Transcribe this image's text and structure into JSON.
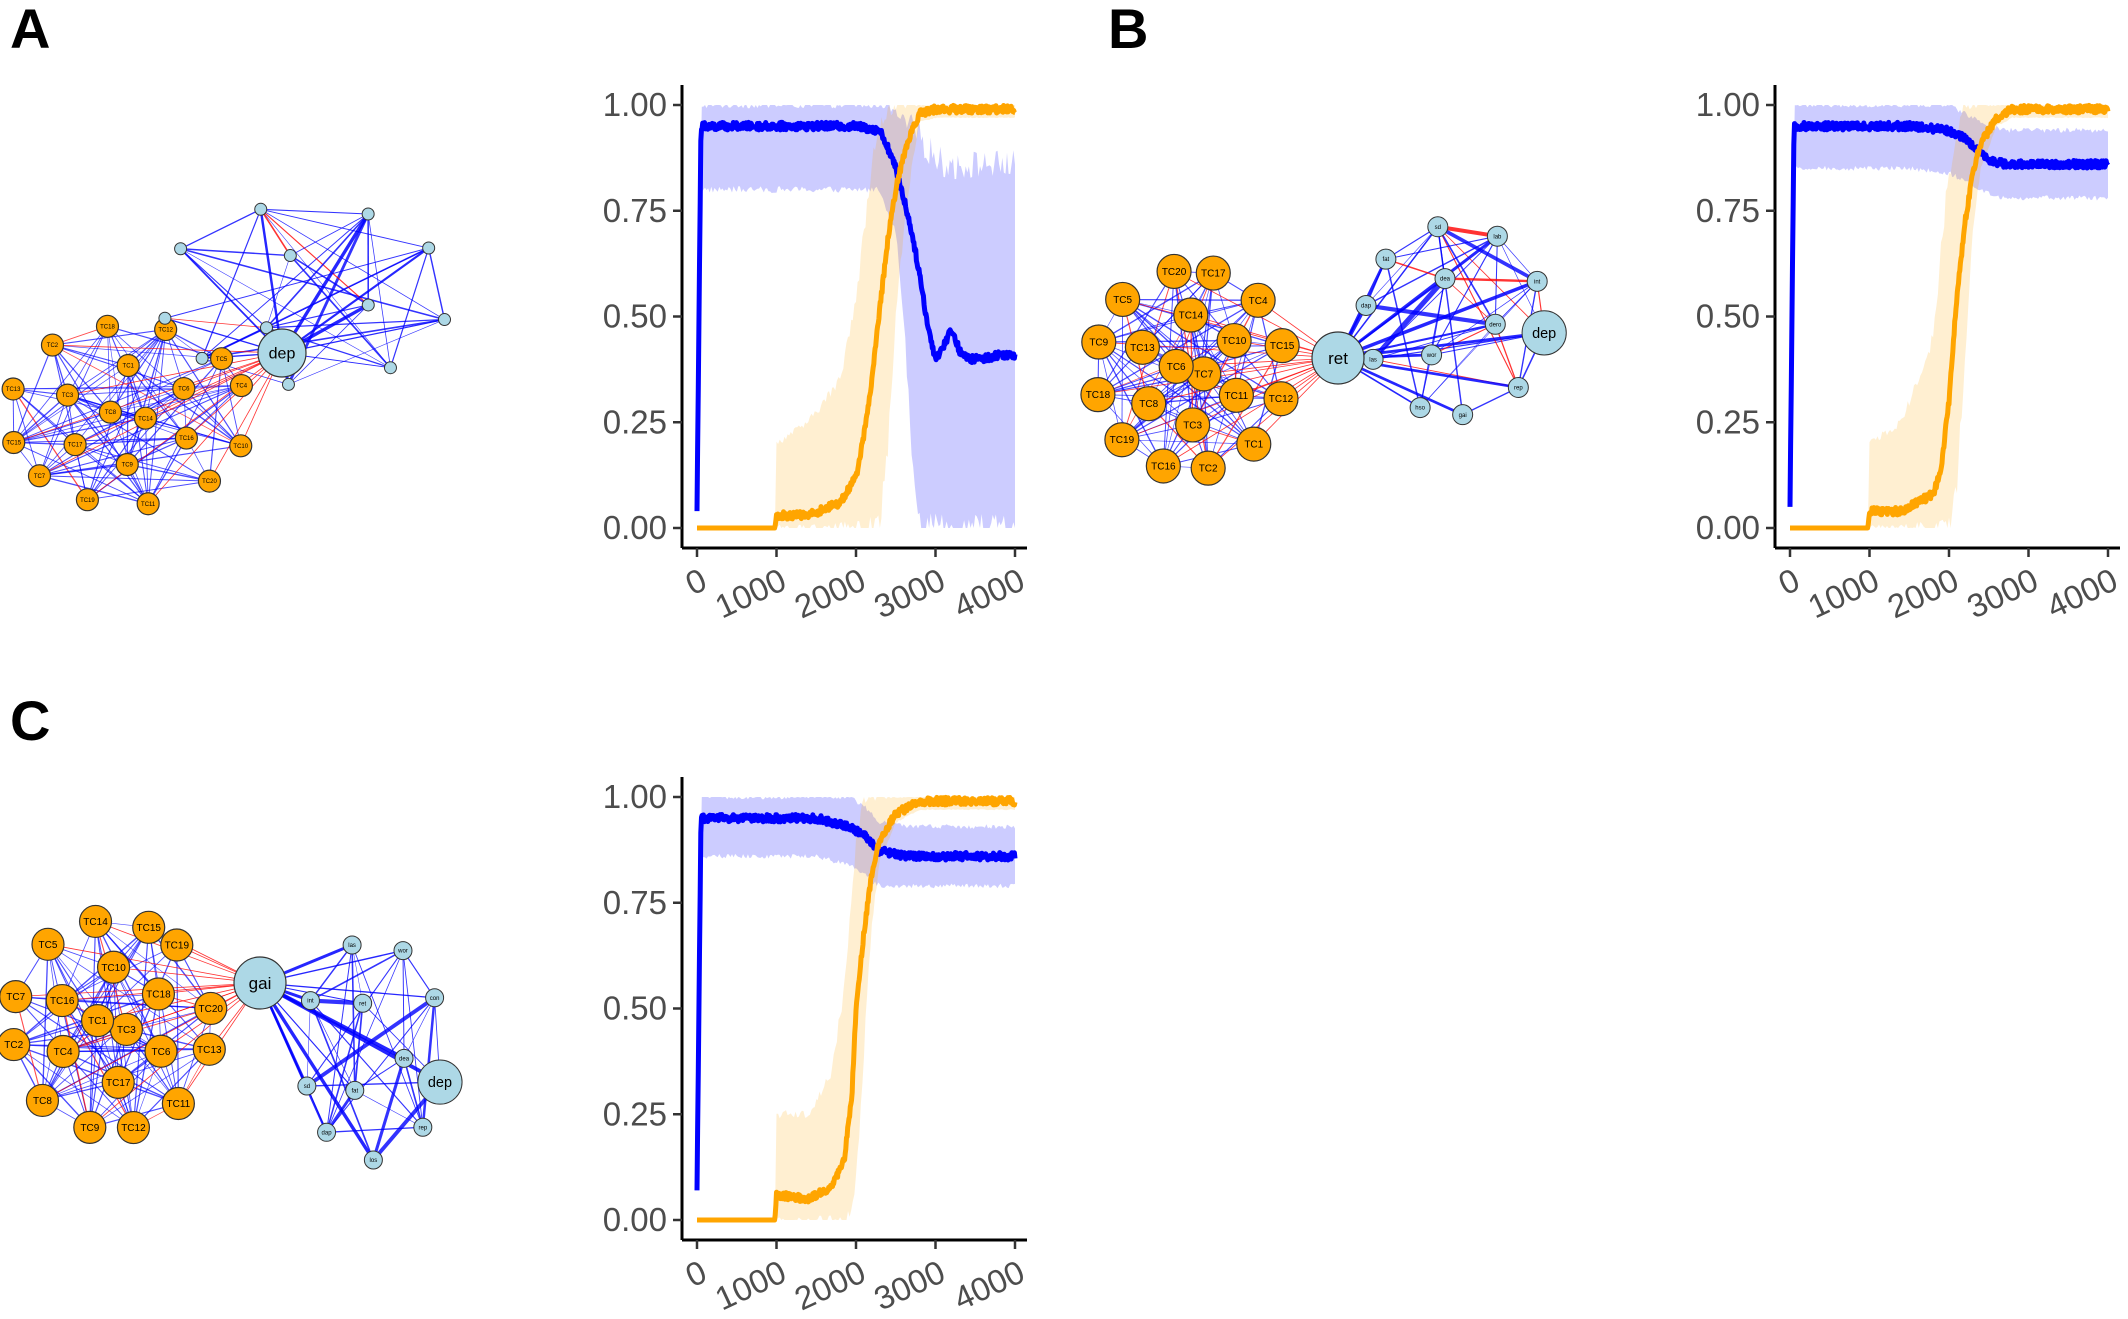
{
  "panels": [
    {
      "letter": "A",
      "network": {
        "hub": "dep",
        "clusters": [
          {
            "color": "#FFA500",
            "nodes": [
              "TC20",
              "TC11",
              "TC19",
              "TC7",
              "TC15",
              "TC13",
              "TC2",
              "TC18",
              "TC12",
              "TC5",
              "TC4",
              "TC10",
              "TC16",
              "TC9",
              "TC17",
              "TC3",
              "TC1",
              "TC6",
              "TC14",
              "TC8"
            ]
          },
          {
            "color": "#ADD8E6",
            "nodes": [
              "",
              "",
              "",
              "",
              "",
              "",
              "",
              "",
              "",
              "",
              "",
              ""
            ]
          }
        ]
      },
      "chart_data": {
        "type": "line",
        "xlim": [
          0,
          4000
        ],
        "ylim": [
          0,
          1
        ],
        "xticks": [
          "0",
          "1000",
          "2000",
          "3000",
          "4000"
        ],
        "yticks": [
          "0.00",
          "0.25",
          "0.50",
          "0.75",
          "1.00"
        ],
        "series": [
          {
            "color": "#0000FF",
            "x": [
              0,
              50,
              1000,
              2000,
              2300,
              2400,
              2500,
              2600,
              2700,
              2800,
              2900,
              3000,
              3100,
              3200,
              3300,
              3400,
              3600,
              3800,
              4000
            ],
            "y": [
              0.04,
              0.95,
              0.95,
              0.95,
              0.94,
              0.9,
              0.85,
              0.78,
              0.7,
              0.6,
              0.48,
              0.4,
              0.43,
              0.47,
              0.42,
              0.4,
              0.4,
              0.41,
              0.41
            ],
            "lower": [
              0.04,
              0.8,
              0.8,
              0.8,
              0.8,
              0.75,
              0.7,
              0.5,
              0.2,
              0.0,
              0.0,
              0.0,
              0.0,
              0.0,
              0.0,
              0.0,
              0.0,
              0.0,
              0.0
            ],
            "upper": [
              0.04,
              1.0,
              1.0,
              1.0,
              1.0,
              1.0,
              0.98,
              0.96,
              0.95,
              0.92,
              0.9,
              0.88,
              0.86,
              0.86,
              0.85,
              0.86,
              0.86,
              0.86,
              0.86
            ]
          },
          {
            "color": "#FFA500",
            "x": [
              0,
              980,
              1000,
              1400,
              1800,
              2000,
              2100,
              2200,
              2300,
              2400,
              2500,
              2600,
              2700,
              2800,
              3000,
              4000
            ],
            "y": [
              0.0,
              0.0,
              0.03,
              0.03,
              0.06,
              0.12,
              0.22,
              0.35,
              0.52,
              0.68,
              0.8,
              0.88,
              0.94,
              0.98,
              0.99,
              0.99
            ],
            "lower": [
              0.0,
              0.0,
              0.0,
              0.0,
              0.0,
              0.0,
              0.0,
              0.0,
              0.0,
              0.2,
              0.5,
              0.7,
              0.85,
              0.96,
              0.97,
              0.97
            ],
            "upper": [
              0.0,
              0.0,
              0.2,
              0.25,
              0.35,
              0.55,
              0.7,
              0.85,
              0.95,
              1.0,
              1.0,
              1.0,
              1.0,
              1.0,
              1.0,
              1.0
            ]
          }
        ]
      }
    },
    {
      "letter": "B",
      "network": {
        "hub": "ret",
        "clusters": [
          {
            "color": "#FFA500",
            "nodes": [
              "TC1",
              "TC2",
              "TC16",
              "TC19",
              "TC18",
              "TC9",
              "TC5",
              "TC20",
              "TC17",
              "TC4",
              "TC15",
              "TC12",
              "TC11",
              "TC3",
              "TC8",
              "TC13",
              "TC14",
              "TC10",
              "TC7",
              "TC6"
            ]
          },
          {
            "color": "#ADD8E6",
            "nodes": [
              "dep",
              "rep",
              "gai",
              "hso",
              "las",
              "dap",
              "fat",
              "sd",
              "lab",
              "int",
              "dero",
              "wor",
              "dea"
            ]
          }
        ]
      },
      "chart_data": {
        "type": "line",
        "xlim": [
          0,
          4000
        ],
        "ylim": [
          0,
          1
        ],
        "xticks": [
          "0",
          "1000",
          "2000",
          "3000",
          "4000"
        ],
        "yticks": [
          "0.00",
          "0.25",
          "0.50",
          "0.75",
          "1.00"
        ],
        "series": [
          {
            "color": "#0000FF",
            "x": [
              0,
              50,
              1000,
              1500,
              2000,
              2200,
              2400,
              2500,
              2700,
              3000,
              3500,
              4000
            ],
            "y": [
              0.05,
              0.95,
              0.95,
              0.95,
              0.94,
              0.92,
              0.89,
              0.87,
              0.86,
              0.86,
              0.86,
              0.86
            ],
            "lower": [
              0.05,
              0.85,
              0.85,
              0.85,
              0.84,
              0.82,
              0.8,
              0.79,
              0.78,
              0.78,
              0.78,
              0.78
            ],
            "upper": [
              0.05,
              1.0,
              1.0,
              1.0,
              1.0,
              0.98,
              0.96,
              0.95,
              0.94,
              0.94,
              0.94,
              0.94
            ]
          },
          {
            "color": "#FFA500",
            "x": [
              0,
              980,
              1000,
              1400,
              1800,
              1900,
              2000,
              2100,
              2200,
              2300,
              2400,
              2600,
              2800,
              4000
            ],
            "y": [
              0.0,
              0.0,
              0.04,
              0.04,
              0.08,
              0.14,
              0.3,
              0.55,
              0.72,
              0.84,
              0.91,
              0.97,
              0.99,
              0.99
            ],
            "lower": [
              0.0,
              0.0,
              0.0,
              0.0,
              0.0,
              0.0,
              0.0,
              0.1,
              0.4,
              0.7,
              0.85,
              0.95,
              0.97,
              0.97
            ],
            "upper": [
              0.0,
              0.0,
              0.2,
              0.25,
              0.45,
              0.65,
              0.85,
              0.95,
              1.0,
              1.0,
              1.0,
              1.0,
              1.0,
              1.0
            ]
          }
        ]
      }
    },
    {
      "letter": "C",
      "network": {
        "hub": "gai",
        "clusters": [
          {
            "color": "#FFA500",
            "nodes": [
              "TC11",
              "TC12",
              "TC9",
              "TC8",
              "TC2",
              "TC7",
              "TC5",
              "TC14",
              "TC15",
              "TC19",
              "TC20",
              "TC13",
              "TC6",
              "TC17",
              "TC4",
              "TC16",
              "TC10",
              "TC18",
              "TC3",
              "TC1"
            ]
          },
          {
            "color": "#ADD8E6",
            "nodes": [
              "dep",
              "rep",
              "los",
              "dap",
              "sd",
              "int",
              "las",
              "wor",
              "con",
              "dea",
              "fat",
              "ret"
            ]
          }
        ]
      },
      "chart_data": {
        "type": "line",
        "xlim": [
          0,
          4000
        ],
        "ylim": [
          0,
          1
        ],
        "xticks": [
          "0",
          "1000",
          "2000",
          "3000",
          "4000"
        ],
        "yticks": [
          "0.00",
          "0.25",
          "0.50",
          "0.75",
          "1.00"
        ],
        "series": [
          {
            "color": "#0000FF",
            "x": [
              0,
              50,
              1000,
              1500,
              1900,
              2100,
              2200,
              2300,
              2400,
              2600,
              3000,
              3500,
              4000
            ],
            "y": [
              0.07,
              0.95,
              0.95,
              0.95,
              0.93,
              0.91,
              0.89,
              0.87,
              0.87,
              0.86,
              0.86,
              0.86,
              0.86
            ],
            "lower": [
              0.07,
              0.86,
              0.86,
              0.86,
              0.84,
              0.82,
              0.8,
              0.79,
              0.79,
              0.79,
              0.79,
              0.79,
              0.79
            ],
            "upper": [
              0.07,
              1.0,
              1.0,
              1.0,
              1.0,
              0.98,
              0.96,
              0.94,
              0.94,
              0.93,
              0.93,
              0.93,
              0.93
            ]
          },
          {
            "color": "#FFA500",
            "x": [
              0,
              980,
              1000,
              1400,
              1700,
              1850,
              1950,
              2000,
              2100,
              2200,
              2300,
              2500,
              2800,
              4000
            ],
            "y": [
              0.0,
              0.0,
              0.06,
              0.05,
              0.08,
              0.14,
              0.3,
              0.5,
              0.68,
              0.82,
              0.9,
              0.96,
              0.99,
              0.99
            ],
            "lower": [
              0.0,
              0.0,
              0.0,
              0.0,
              0.0,
              0.0,
              0.0,
              0.1,
              0.4,
              0.7,
              0.85,
              0.94,
              0.97,
              0.97
            ],
            "upper": [
              0.0,
              0.0,
              0.25,
              0.25,
              0.35,
              0.55,
              0.75,
              0.9,
              1.0,
              1.0,
              1.0,
              1.0,
              1.0,
              1.0
            ]
          }
        ]
      }
    }
  ]
}
